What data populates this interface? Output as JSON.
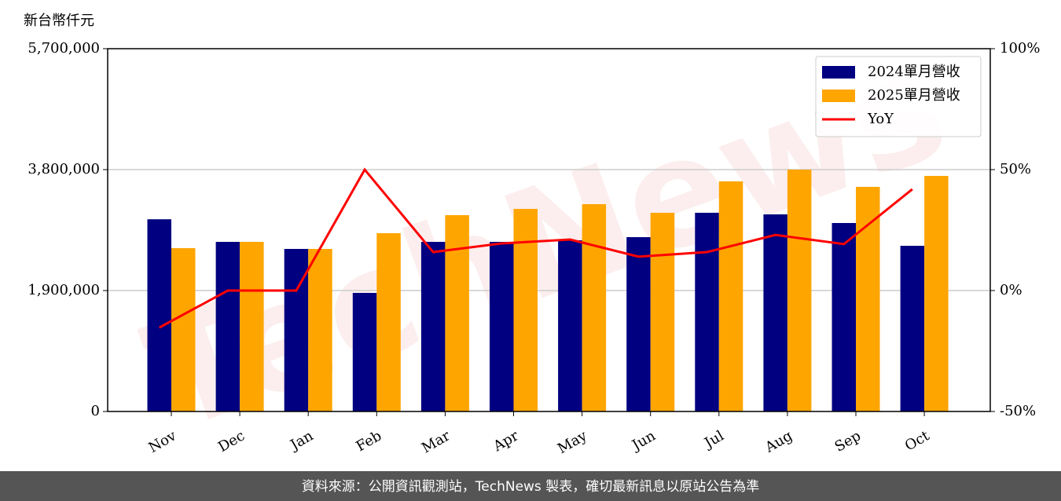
{
  "unit_label": "新台幣仟元",
  "watermark": "TechNews",
  "footer": "資料來源：公開資訊觀測站，TechNews 製表，確切最新訊息以原站公告為準",
  "chart_data": {
    "type": "bar-line",
    "categories": [
      "Nov",
      "Dec",
      "Jan",
      "Feb",
      "Mar",
      "Apr",
      "May",
      "Jun",
      "Jul",
      "Aug",
      "Sep",
      "Oct"
    ],
    "series": [
      {
        "name": "2024單月營收",
        "color": "#000080",
        "values": [
          3020000,
          2665000,
          2554000,
          1863000,
          2665000,
          2665000,
          2690000,
          2739000,
          3122000,
          3097000,
          2961000,
          2603000
        ]
      },
      {
        "name": "2025單月營收",
        "color": "#ffa500",
        "values": [
          2566000,
          2665000,
          2554000,
          2801000,
          3085000,
          3183000,
          3257000,
          3122000,
          3615000,
          3800000,
          3529000,
          3701000
        ]
      },
      {
        "name": "YoY",
        "color": "#ff0000",
        "axis": "y2",
        "values": [
          -15.3,
          0,
          0,
          50,
          15.9,
          19.5,
          21.1,
          14,
          15.9,
          23,
          19.2,
          41.9
        ]
      }
    ],
    "ylim": [
      0,
      5700000
    ],
    "yticks": [
      0,
      {
        "value": 1900000,
        "label": "1,900,000"
      },
      {
        "value": 3800000,
        "label": "3,800,000"
      },
      {
        "value": 5700000,
        "label": "5,700,000"
      }
    ],
    "y2lim": [
      -50,
      100
    ],
    "y2ticks": [
      {
        "value": -50,
        "label": "-50%"
      },
      {
        "value": 0,
        "label": "0%"
      },
      {
        "value": 50,
        "label": "50%"
      },
      {
        "value": 100,
        "label": "100%"
      }
    ],
    "grid": true,
    "legend": "upper right"
  }
}
